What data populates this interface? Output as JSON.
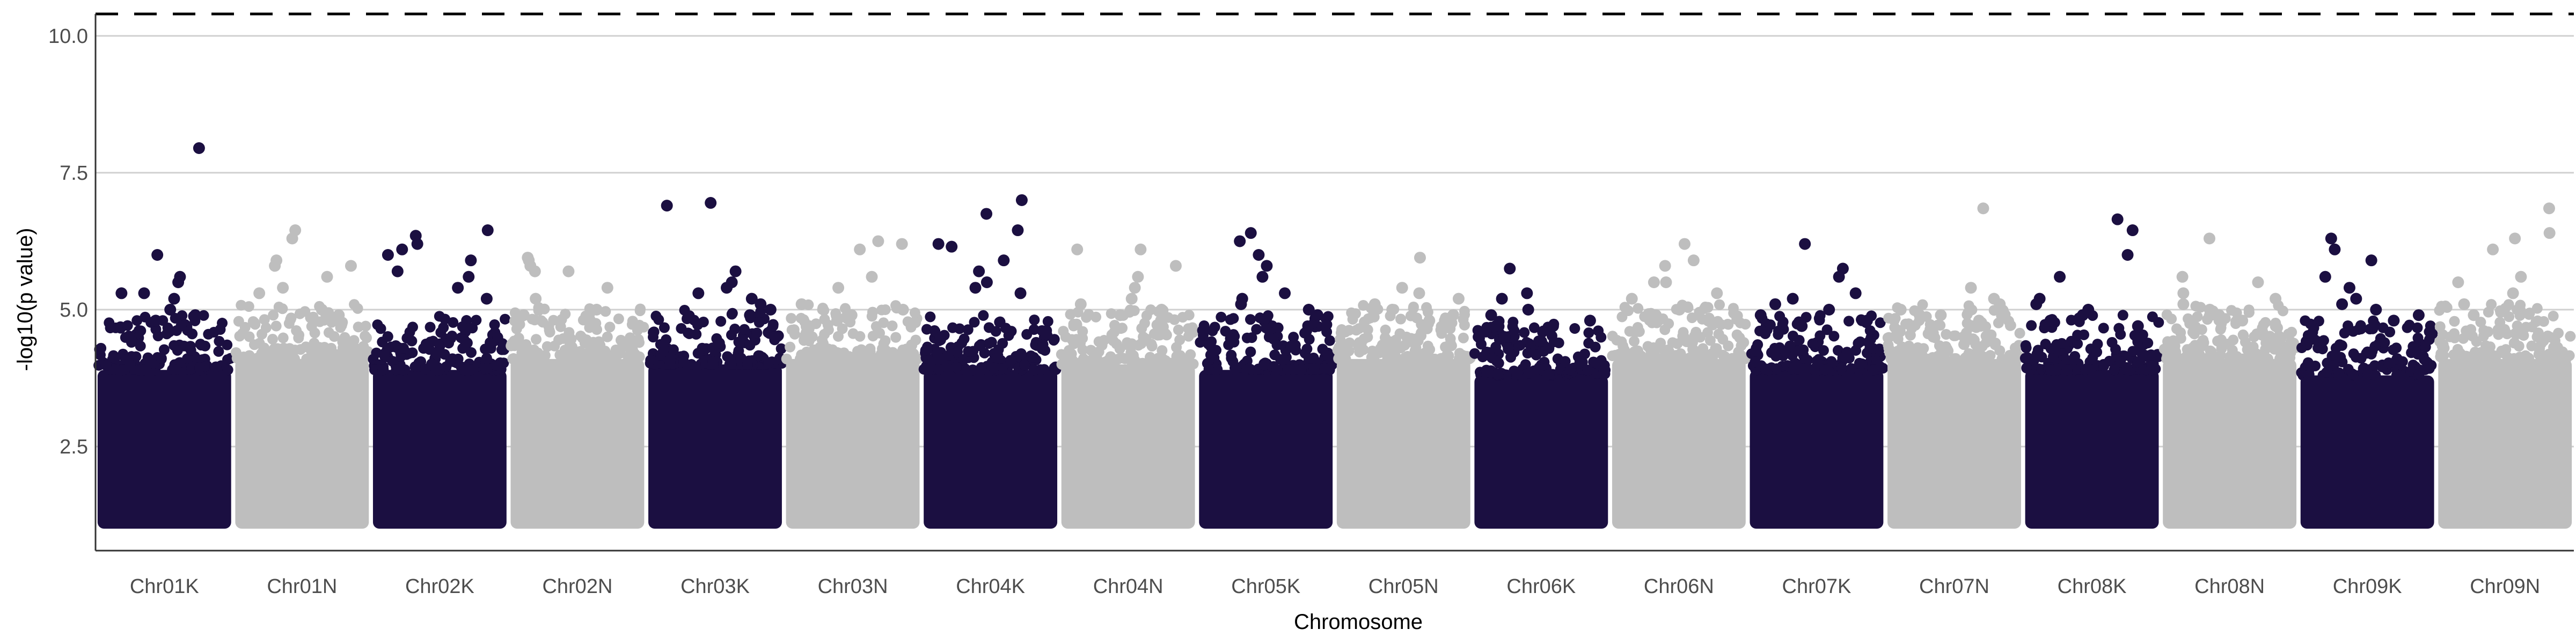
{
  "chart_data": {
    "type": "scatter",
    "subtype": "manhattan",
    "title": "",
    "xlabel": "Chromosome",
    "ylabel": "-log10(p value)",
    "ylim": [
      0.6,
      10.4
    ],
    "yticks": [
      2.5,
      5.0,
      7.5,
      10.0
    ],
    "ytick_labels": [
      "2.5",
      "5.0",
      "7.5",
      "10.0"
    ],
    "grid": {
      "horizontal_major": true,
      "vertical": false
    },
    "threshold": {
      "value": 10.4,
      "style": "dashed",
      "color": "#000000"
    },
    "colors": {
      "odd": "#1b0f41",
      "even": "#bebebe",
      "grid": "#d0d0d0",
      "axis": "#333333"
    },
    "min_value": 1.0,
    "categories": [
      "Chr01K",
      "Chr01N",
      "Chr02K",
      "Chr02N",
      "Chr03K",
      "Chr03N",
      "Chr04K",
      "Chr04N",
      "Chr05K",
      "Chr05N",
      "Chr06K",
      "Chr06N",
      "Chr07K",
      "Chr07N",
      "Chr08K",
      "Chr08N",
      "Chr09K",
      "Chr09N"
    ],
    "dense_top": [
      3.9,
      4.1,
      3.9,
      4.1,
      4.0,
      4.1,
      3.9,
      4.0,
      3.9,
      4.1,
      3.8,
      4.1,
      3.9,
      4.1,
      3.9,
      4.1,
      3.8,
      4.1
    ],
    "top_hits": [
      [
        7.95,
        6.0,
        5.6,
        5.5,
        5.3,
        5.3,
        5.2,
        5.0,
        4.9,
        4.8
      ],
      [
        6.45,
        6.3,
        5.9,
        5.8,
        5.8,
        5.6,
        5.4,
        5.3,
        5.0,
        4.9
      ],
      [
        6.45,
        6.35,
        6.2,
        6.1,
        6.0,
        5.9,
        5.7,
        5.6,
        5.4,
        5.2
      ],
      [
        5.95,
        5.9,
        5.8,
        5.7,
        5.7,
        5.4,
        5.2,
        5.0,
        4.9,
        4.8
      ],
      [
        6.95,
        6.9,
        5.7,
        5.5,
        5.4,
        5.3,
        5.2,
        5.1,
        5.0,
        4.9
      ],
      [
        6.25,
        6.2,
        6.1,
        5.6,
        5.4,
        5.1,
        5.0,
        4.9,
        4.8,
        4.7
      ],
      [
        7.0,
        6.75,
        6.45,
        6.2,
        6.15,
        5.9,
        5.7,
        5.5,
        5.4,
        5.3
      ],
      [
        6.1,
        6.1,
        5.8,
        5.6,
        5.4,
        5.2,
        5.1,
        5.0,
        4.9,
        4.8
      ],
      [
        6.4,
        6.25,
        6.0,
        5.8,
        5.6,
        5.3,
        5.2,
        5.1,
        5.0,
        4.9
      ],
      [
        5.95,
        5.4,
        5.3,
        5.2,
        5.1,
        5.0,
        4.9,
        4.8,
        4.8,
        4.7
      ],
      [
        5.75,
        5.3,
        5.2,
        5.0,
        4.9,
        4.8,
        4.7,
        4.6,
        4.5,
        4.5
      ],
      [
        6.2,
        5.9,
        5.8,
        5.5,
        5.5,
        5.3,
        5.2,
        5.0,
        4.9,
        4.8
      ],
      [
        6.2,
        5.75,
        5.6,
        5.3,
        5.2,
        5.1,
        5.0,
        4.9,
        4.8,
        4.7
      ],
      [
        6.85,
        5.4,
        5.2,
        5.1,
        5.0,
        4.9,
        4.9,
        4.8,
        4.7,
        4.6
      ],
      [
        6.65,
        6.45,
        6.0,
        5.6,
        5.2,
        5.1,
        5.0,
        4.9,
        4.8,
        4.7
      ],
      [
        6.3,
        5.6,
        5.5,
        5.3,
        5.2,
        5.1,
        5.0,
        4.9,
        4.8,
        4.7
      ],
      [
        6.3,
        6.1,
        5.9,
        5.6,
        5.4,
        5.2,
        5.1,
        5.0,
        4.9,
        4.8
      ],
      [
        6.85,
        6.4,
        6.3,
        6.1,
        5.6,
        5.5,
        5.3,
        5.1,
        5.0,
        4.9
      ]
    ]
  }
}
